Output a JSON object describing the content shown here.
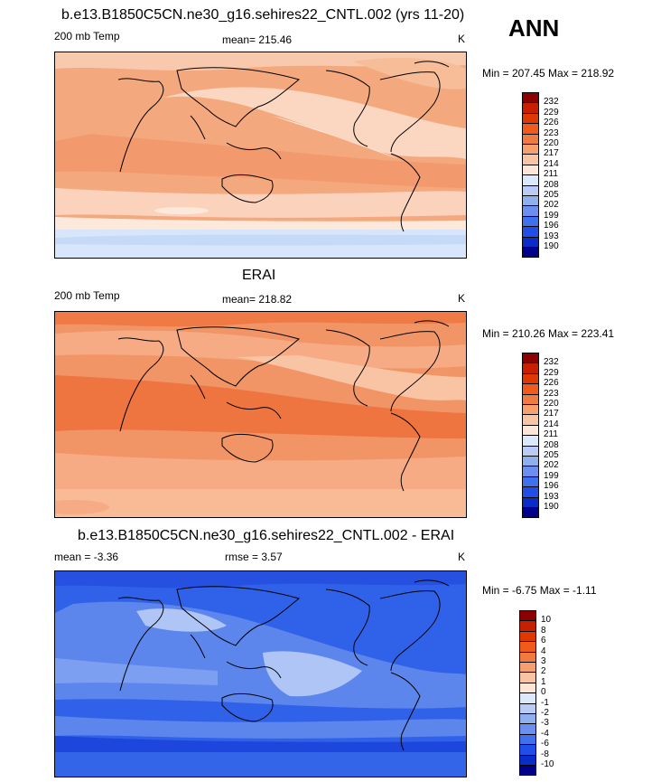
{
  "season": "ANN",
  "panels": [
    {
      "title": "b.e13.B1850C5CN.ne30_g16.sehires22_CNTL.002 (yrs 11-20)",
      "left_label": "200 mb Temp",
      "center_label": "mean= 215.46",
      "units": "K",
      "minmax": "Min = 207.45 Max = 218.92",
      "colorbar_labels": [
        "232",
        "229",
        "226",
        "223",
        "220",
        "217",
        "214",
        "211",
        "208",
        "205",
        "202",
        "199",
        "196",
        "193",
        "190"
      ],
      "colorbar_colors": [
        "#8b0000",
        "#c81f00",
        "#e03800",
        "#f05a1a",
        "#f07a40",
        "#f4a070",
        "#f8c4a4",
        "#fde6d6",
        "#dce8fb",
        "#b8ccf5",
        "#8fb0ef",
        "#6a8ff0",
        "#4070ee",
        "#1f4fe6",
        "#0a2cc8",
        "#00008b"
      ]
    },
    {
      "title": "ERAI",
      "left_label": "200 mb Temp",
      "center_label": "mean= 218.82",
      "units": "K",
      "minmax": "Min = 210.26 Max = 223.41",
      "colorbar_labels": [
        "232",
        "229",
        "226",
        "223",
        "220",
        "217",
        "214",
        "211",
        "208",
        "205",
        "202",
        "199",
        "196",
        "193",
        "190"
      ],
      "colorbar_colors": [
        "#8b0000",
        "#c81f00",
        "#e03800",
        "#f05a1a",
        "#f07a40",
        "#f4a070",
        "#f8c4a4",
        "#fde6d6",
        "#dce8fb",
        "#b8ccf5",
        "#8fb0ef",
        "#6a8ff0",
        "#4070ee",
        "#1f4fe6",
        "#0a2cc8",
        "#00008b"
      ]
    },
    {
      "title": "b.e13.B1850C5CN.ne30_g16.sehires22_CNTL.002 - ERAI",
      "left_label": "mean =  -3.36",
      "center_label": "rmse =   3.57",
      "units": "K",
      "minmax": "Min =  -6.75 Max =  -1.11",
      "colorbar_labels": [
        "10",
        "8",
        "6",
        "4",
        "3",
        "2",
        "1",
        "0",
        "-1",
        "-2",
        "-3",
        "-4",
        "-6",
        "-8",
        "-10"
      ],
      "colorbar_colors": [
        "#8b0000",
        "#c81f00",
        "#e03800",
        "#f05a1a",
        "#f07a40",
        "#f4a070",
        "#f8c4a4",
        "#fde6d6",
        "#dce8fb",
        "#b8ccf5",
        "#8fb0ef",
        "#6a8ff0",
        "#4070ee",
        "#1f4fe6",
        "#0a2cc8",
        "#00008b"
      ]
    }
  ],
  "chart_data": [
    {
      "type": "heatmap",
      "title": "b.e13.B1850C5CN.ne30_g16.sehires22_CNTL.002 (yrs 11-20)",
      "variable": "200 mb Temp",
      "units": "K",
      "mean": 215.46,
      "min": 207.45,
      "max": 218.92,
      "contour_levels": [
        190,
        193,
        196,
        199,
        202,
        205,
        208,
        211,
        214,
        217,
        220,
        223,
        226,
        229,
        232
      ]
    },
    {
      "type": "heatmap",
      "title": "ERAI",
      "variable": "200 mb Temp",
      "units": "K",
      "mean": 218.82,
      "min": 210.26,
      "max": 223.41,
      "contour_levels": [
        190,
        193,
        196,
        199,
        202,
        205,
        208,
        211,
        214,
        217,
        220,
        223,
        226,
        229,
        232
      ]
    },
    {
      "type": "heatmap",
      "title": "b.e13.B1850C5CN.ne30_g16.sehires22_CNTL.002 - ERAI",
      "units": "K",
      "mean": -3.36,
      "rmse": 3.57,
      "min": -6.75,
      "max": -1.11,
      "contour_levels": [
        -10,
        -8,
        -6,
        -4,
        -3,
        -2,
        -1,
        0,
        1,
        2,
        3,
        4,
        6,
        8,
        10
      ]
    }
  ]
}
